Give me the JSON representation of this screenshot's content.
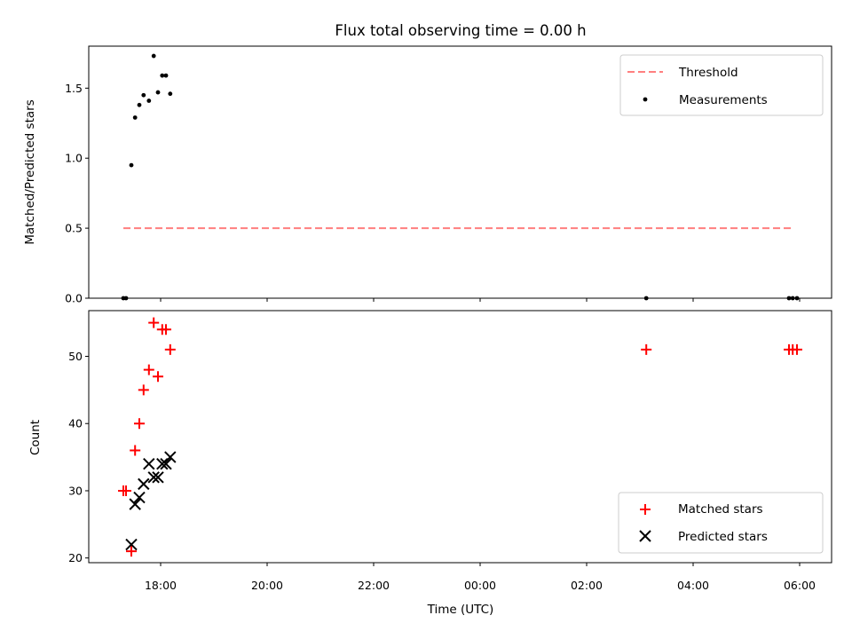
{
  "chart_data": [
    {
      "type": "scatter",
      "title": "Flux total observing time = 0.00 h",
      "xlabel": "",
      "ylabel": "Matched/Predicted stars",
      "xlim": [
        16.65,
        30.6
      ],
      "ylim": [
        0.0,
        1.8
      ],
      "yticks": [
        0.0,
        0.5,
        1.0,
        1.5
      ],
      "ytick_labels": [
        "0.0",
        "0.5",
        "1.0",
        "1.5"
      ],
      "legend_position": "top-right",
      "grid": false,
      "series": [
        {
          "name": "Threshold",
          "kind": "line",
          "style": "dashed",
          "color": "#ff7f7f",
          "points": [
            [
              17.3,
              0.5
            ],
            [
              29.85,
              0.5
            ]
          ]
        },
        {
          "name": "Measurements",
          "kind": "scatter",
          "color": "#000000",
          "points": [
            [
              17.3,
              0.0
            ],
            [
              17.35,
              0.0
            ],
            [
              17.45,
              0.95
            ],
            [
              17.52,
              1.29
            ],
            [
              17.6,
              1.38
            ],
            [
              17.68,
              1.45
            ],
            [
              17.78,
              1.41
            ],
            [
              17.87,
              1.73
            ],
            [
              17.95,
              1.47
            ],
            [
              18.03,
              1.59
            ],
            [
              18.1,
              1.59
            ],
            [
              18.18,
              1.46
            ],
            [
              27.12,
              0.0
            ],
            [
              29.8,
              0.0
            ],
            [
              29.87,
              0.0
            ],
            [
              29.95,
              0.0
            ]
          ]
        }
      ]
    },
    {
      "type": "scatter",
      "title": "",
      "xlabel": "Time (UTC)",
      "ylabel": "Count",
      "xlim": [
        16.65,
        30.6
      ],
      "ylim": [
        19.3,
        56.8
      ],
      "yticks": [
        20,
        30,
        40,
        50
      ],
      "ytick_labels": [
        "20",
        "30",
        "40",
        "50"
      ],
      "xticks": [
        18,
        20,
        22,
        24,
        26,
        28,
        30
      ],
      "xtick_labels": [
        "18:00",
        "20:00",
        "22:00",
        "00:00",
        "02:00",
        "04:00",
        "06:00"
      ],
      "legend_position": "bottom-right",
      "grid": false,
      "series": [
        {
          "name": "Matched stars",
          "marker": "plus",
          "color": "#ff0000",
          "points": [
            [
              17.3,
              30
            ],
            [
              17.35,
              30
            ],
            [
              17.45,
              21
            ],
            [
              17.52,
              36
            ],
            [
              17.6,
              40
            ],
            [
              17.68,
              45
            ],
            [
              17.78,
              48
            ],
            [
              17.87,
              55
            ],
            [
              17.95,
              47
            ],
            [
              18.03,
              54
            ],
            [
              18.1,
              54
            ],
            [
              18.18,
              51
            ],
            [
              27.12,
              51
            ],
            [
              29.8,
              51
            ],
            [
              29.87,
              51
            ],
            [
              29.95,
              51
            ]
          ]
        },
        {
          "name": "Predicted stars",
          "marker": "x",
          "color": "#000000",
          "points": [
            [
              17.45,
              22
            ],
            [
              17.52,
              28
            ],
            [
              17.6,
              29
            ],
            [
              17.68,
              31
            ],
            [
              17.78,
              34
            ],
            [
              17.87,
              32
            ],
            [
              17.95,
              32
            ],
            [
              18.03,
              34
            ],
            [
              18.1,
              34
            ],
            [
              18.18,
              35
            ]
          ]
        }
      ]
    }
  ]
}
